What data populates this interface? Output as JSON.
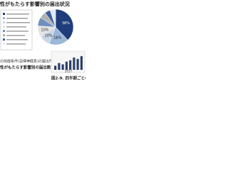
{
  "header": {
    "title": "性がもたらす影響別の届出状況"
  },
  "pie": {
    "type": "pie",
    "values": [
      38,
      18,
      10,
      10,
      8,
      6,
      5,
      5
    ],
    "value_labels": [
      "38%",
      "18%",
      "10%",
      "10%",
      null,
      null,
      null,
      null
    ],
    "colors": [
      "#1f3d7a",
      "#9bb8d9",
      "#c9d6e6",
      "#e4e4e4",
      "#6f8fbf",
      "#b0b0b0",
      "#3d5f9e",
      "#dfe9f3"
    ]
  },
  "caption_left": {
    "line1": "の前提条件(自律神経系)の届出件数",
    "line2": "性がもたらす影響別の届出数"
  },
  "caption_right": "図2-9. 四半期ごとの届",
  "bars": {
    "type": "bar",
    "values": [
      3,
      5,
      4,
      6,
      7,
      9,
      8,
      10
    ],
    "color": "#2c3e66",
    "ylim": [
      0,
      12
    ],
    "x_label": "2017"
  }
}
